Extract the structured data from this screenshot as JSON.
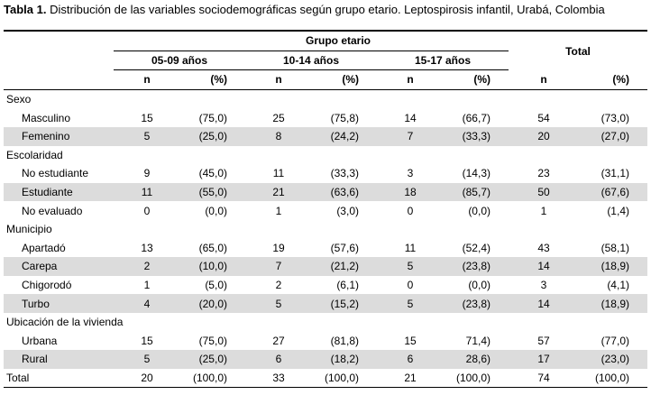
{
  "caption": {
    "label": "Tabla 1.",
    "text": " Distribución de las variables sociodemográficas según grupo etario. Leptospirosis infantil, Urabá, Colombia"
  },
  "header": {
    "group_label": "Grupo etario",
    "groups": [
      "05-09 años",
      "10-14 años",
      "15-17 años"
    ],
    "total_label": "Total",
    "n_label": "n",
    "pct_label": "(%)"
  },
  "sections": [
    {
      "title": "Sexo",
      "rows": [
        {
          "label": "Masculino",
          "v": [
            "15",
            "(75,0)",
            "25",
            "(75,8)",
            "14",
            "(66,7)",
            "54",
            "(73,0)"
          ]
        },
        {
          "label": "Femenino",
          "v": [
            "5",
            "(25,0)",
            "8",
            "(24,2)",
            "7",
            "(33,3)",
            "20",
            "(27,0)"
          ]
        }
      ]
    },
    {
      "title": "Escolaridad",
      "rows": [
        {
          "label": "No estudiante",
          "v": [
            "9",
            "(45,0)",
            "11",
            "(33,3)",
            "3",
            "(14,3)",
            "23",
            "(31,1)"
          ]
        },
        {
          "label": "Estudiante",
          "v": [
            "11",
            "(55,0)",
            "21",
            "(63,6)",
            "18",
            "(85,7)",
            "50",
            "(67,6)"
          ]
        },
        {
          "label": "No evaluado",
          "v": [
            "0",
            "(0,0)",
            "1",
            "(3,0)",
            "0",
            "(0,0)",
            "1",
            "(1,4)"
          ]
        }
      ]
    },
    {
      "title": "Municipio",
      "rows": [
        {
          "label": "Apartadó",
          "v": [
            "13",
            "(65,0)",
            "19",
            "(57,6)",
            "11",
            "(52,4)",
            "43",
            "(58,1)"
          ]
        },
        {
          "label": "Carepa",
          "v": [
            "2",
            "(10,0)",
            "7",
            "(21,2)",
            "5",
            "(23,8)",
            "14",
            "(18,9)"
          ]
        },
        {
          "label": "Chigorodó",
          "v": [
            "1",
            "(5,0)",
            "2",
            "(6,1)",
            "0",
            "(0,0)",
            "3",
            "(4,1)"
          ]
        },
        {
          "label": "Turbo",
          "v": [
            "4",
            "(20,0)",
            "5",
            "(15,2)",
            "5",
            "(23,8)",
            "14",
            "(18,9)"
          ]
        }
      ]
    },
    {
      "title": "Ubicación de la vivienda",
      "rows": [
        {
          "label": "Urbana",
          "v": [
            "15",
            "(75,0)",
            "27",
            "(81,8)",
            "15",
            "71,4)",
            "57",
            "(77,0)"
          ]
        },
        {
          "label": "Rural",
          "v": [
            "5",
            "(25,0)",
            "6",
            "(18,2)",
            "6",
            "28,6)",
            "17",
            "(23,0)"
          ]
        }
      ]
    }
  ],
  "total_row": {
    "label": "Total",
    "v": [
      "20",
      "(100,0)",
      "33",
      "(100,0)",
      "21",
      "(100,0)",
      "74",
      "(100,0)"
    ]
  },
  "shade_color": "#dcdcdc"
}
